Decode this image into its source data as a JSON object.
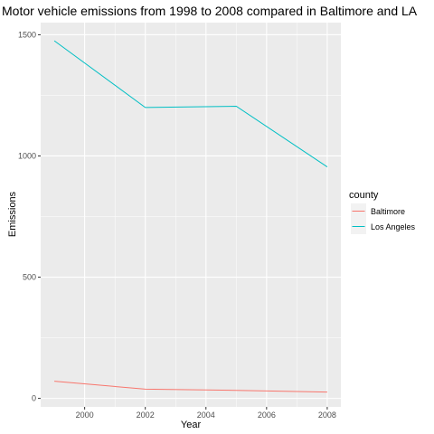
{
  "chart_data": {
    "type": "line",
    "title": "Motor vehicle emissions from 1998 to 2008 compared in Baltimore and LA",
    "xlabel": "Year",
    "ylabel": "Emissions",
    "x": [
      1999,
      2002,
      2005,
      2008
    ],
    "xlim": [
      1998.55,
      2008.45
    ],
    "ylim": [
      -35,
      1550
    ],
    "x_ticks": [
      2000,
      2002,
      2004,
      2006,
      2008
    ],
    "y_ticks": [
      0,
      500,
      1000,
      1500
    ],
    "legend_title": "county",
    "legend_position": "right",
    "grid": true,
    "series": [
      {
        "name": "Baltimore",
        "color": "#F8766D",
        "values": [
          71,
          38,
          33,
          26
        ]
      },
      {
        "name": "Los Angeles",
        "color": "#00BFC4",
        "values": [
          1475,
          1200,
          1205,
          955
        ]
      }
    ]
  }
}
